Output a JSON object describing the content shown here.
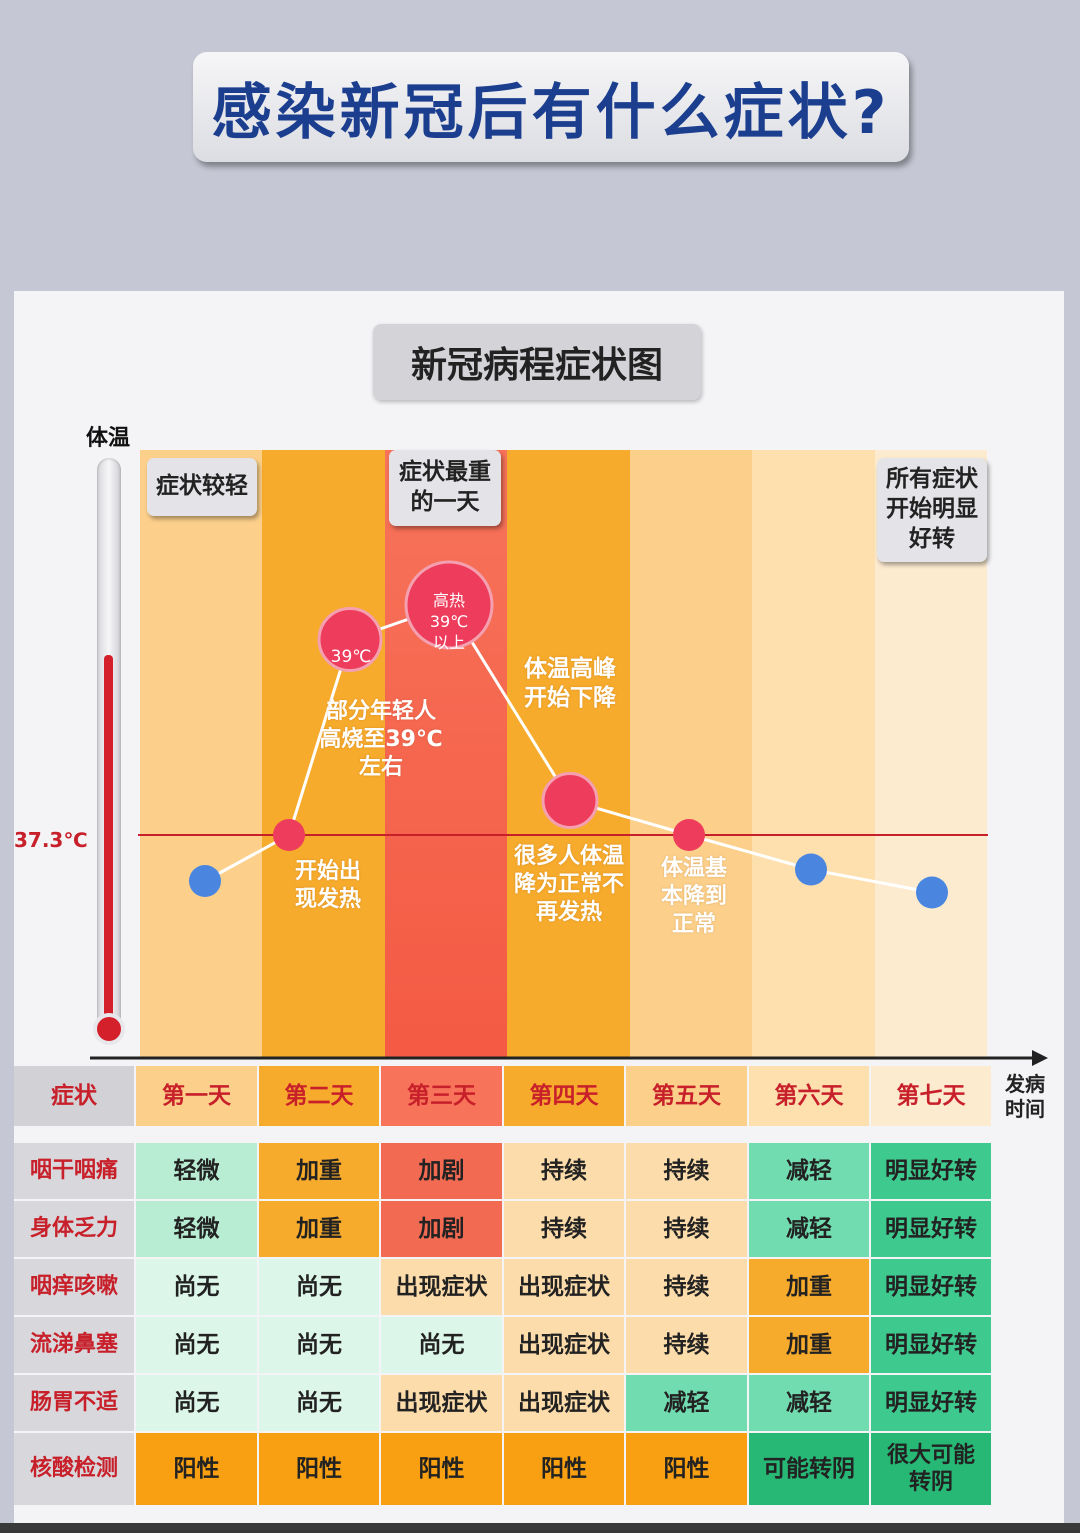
{
  "title": "感染新冠后有什么症状?",
  "subtitle": "新冠病程症状图",
  "chart_data": {
    "type": "line",
    "ylabel": "体温",
    "xlabel": "发病时间",
    "reference_line": {
      "label": "37.3℃",
      "value": 37.3
    },
    "categories": [
      "第一天",
      "第二天",
      "第三天",
      "第四天",
      "第五天",
      "第六天",
      "第七天"
    ],
    "points": [
      {
        "x": "第一天",
        "y": 36.9
      },
      {
        "x": "第二天",
        "y": 37.3
      },
      {
        "x": "第二天",
        "y": 39.0,
        "label": "39℃"
      },
      {
        "x": "第三天",
        "y": 39.3,
        "label": "高热 39℃ 以上"
      },
      {
        "x": "第四天",
        "y": 37.6
      },
      {
        "x": "第五天",
        "y": 37.3
      },
      {
        "x": "第六天",
        "y": 37.0
      },
      {
        "x": "第七天",
        "y": 36.8
      }
    ],
    "stage_tags": {
      "day1": "症状较轻",
      "day3": "症状最重的一天",
      "day7": "所有症状开始明显好转"
    },
    "annotations": {
      "onset": "开始出现发热",
      "young": "部分年轻人高烧至39℃左右",
      "peak_down": "体温高峰开始下降",
      "normal": "很多人体温降为正常不再发热",
      "basic_normal": "体温基本降到正常"
    },
    "bubble": {
      "day2": "39℃",
      "day3_line1": "高热",
      "day3_line2": "39℃",
      "day3_line3": "以上"
    },
    "colors": {
      "point_red": "#ee3d5c",
      "point_blue": "#4a86e0",
      "reference": "#c8202a",
      "line": "#ffffff"
    }
  },
  "table": {
    "header": [
      "症状",
      "第一天",
      "第二天",
      "第三天",
      "第四天",
      "第五天",
      "第六天",
      "第七天"
    ],
    "rows": [
      {
        "symptom": "咽干咽痛",
        "values": [
          "轻微",
          "加重",
          "加剧",
          "持续",
          "持续",
          "减轻",
          "明显好转"
        ]
      },
      {
        "symptom": "身体乏力",
        "values": [
          "轻微",
          "加重",
          "加剧",
          "持续",
          "持续",
          "减轻",
          "明显好转"
        ]
      },
      {
        "symptom": "咽痒咳嗽",
        "values": [
          "尚无",
          "尚无",
          "出现症状",
          "出现症状",
          "持续",
          "加重",
          "明显好转"
        ]
      },
      {
        "symptom": "流涕鼻塞",
        "values": [
          "尚无",
          "尚无",
          "尚无",
          "出现症状",
          "持续",
          "加重",
          "明显好转"
        ]
      },
      {
        "symptom": "肠胃不适",
        "values": [
          "尚无",
          "尚无",
          "出现症状",
          "出现症状",
          "减轻",
          "减轻",
          "明显好转"
        ]
      },
      {
        "symptom": "核酸检测",
        "values": [
          "阳性",
          "阳性",
          "阳性",
          "阳性",
          "阳性",
          "可能转阴",
          "很大可能转阴"
        ]
      }
    ]
  }
}
